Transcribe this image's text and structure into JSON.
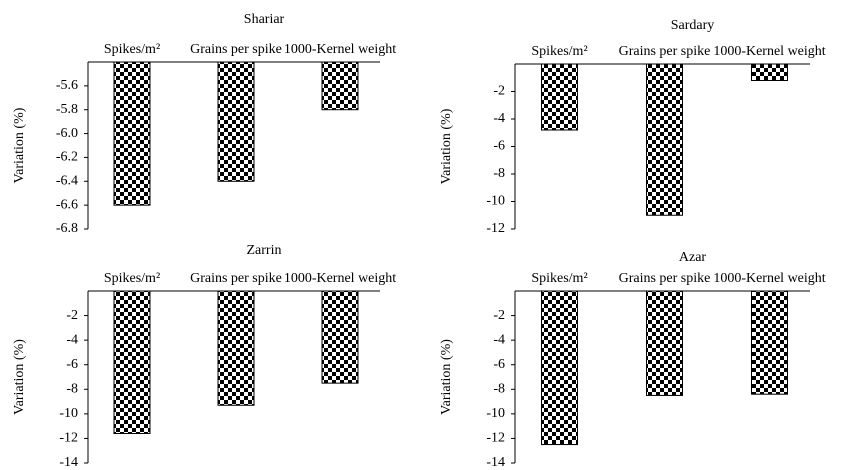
{
  "chart_data": [
    {
      "type": "bar",
      "title": "Shariar",
      "ylabel": "Variation (%)",
      "categories": [
        "Spikes/m²",
        "Grains per spike",
        "1000-Kernel weight"
      ],
      "values": [
        -6.6,
        -6.4,
        -5.8
      ],
      "color": "#000000",
      "ylim": [
        -6.8,
        -5.4
      ],
      "yticks": [
        -5.6,
        -5.8,
        {
          "value": -6,
          "label": "-6.0"
        },
        -6.2,
        -6.4,
        -6.6,
        -6.8
      ]
    },
    {
      "type": "bar",
      "title": "Sardary",
      "ylabel": "Variation (%)",
      "categories": [
        "Spikes/m²",
        "Grains per spike",
        "1000-Kernel weight"
      ],
      "values": [
        -4.8,
        -11,
        -1.2
      ],
      "color": "#000000",
      "ylim": [
        -12,
        0
      ],
      "yticks": [
        -2,
        -4,
        -6,
        -8,
        -10,
        -12
      ]
    },
    {
      "type": "bar",
      "title": "Zarrin",
      "ylabel": "Variation (%)",
      "categories": [
        "Spikes/m²",
        "Grains per spike",
        "1000-Kernel weight"
      ],
      "values": [
        -11.6,
        -9.3,
        -7.5
      ],
      "color": "#000000",
      "ylim": [
        -14,
        0
      ],
      "yticks": [
        -2,
        -4,
        -6,
        -8,
        -10,
        -12,
        -14
      ]
    },
    {
      "type": "bar",
      "title": "Azar",
      "ylabel": "Variation (%)",
      "categories": [
        "Spikes/m²",
        "Grains per spike",
        "1000-Kernel weight"
      ],
      "values": [
        -12.5,
        -8.5,
        -8.4
      ],
      "color": "#000000",
      "ylim": [
        -14,
        0
      ],
      "yticks": [
        -2,
        -4,
        -6,
        -8,
        -10,
        -12,
        -14
      ]
    }
  ]
}
